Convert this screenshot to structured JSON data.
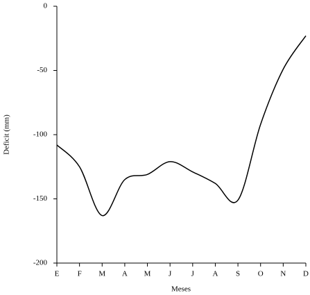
{
  "chart_data": {
    "type": "line",
    "x_label": "Meses",
    "y_label": "Deficit (mm)",
    "categories": [
      "E",
      "F",
      "M",
      "A",
      "M",
      "J",
      "J",
      "A",
      "S",
      "O",
      "N",
      "D"
    ],
    "values": [
      -108,
      -125,
      -163,
      -135,
      -131,
      -121,
      -129,
      -138,
      -151,
      -92,
      -49,
      -23
    ],
    "color": "#000000",
    "ylim": [
      -200,
      0
    ],
    "yticks": [
      -200,
      -150,
      -100,
      -50,
      0
    ],
    "grid": false
  }
}
